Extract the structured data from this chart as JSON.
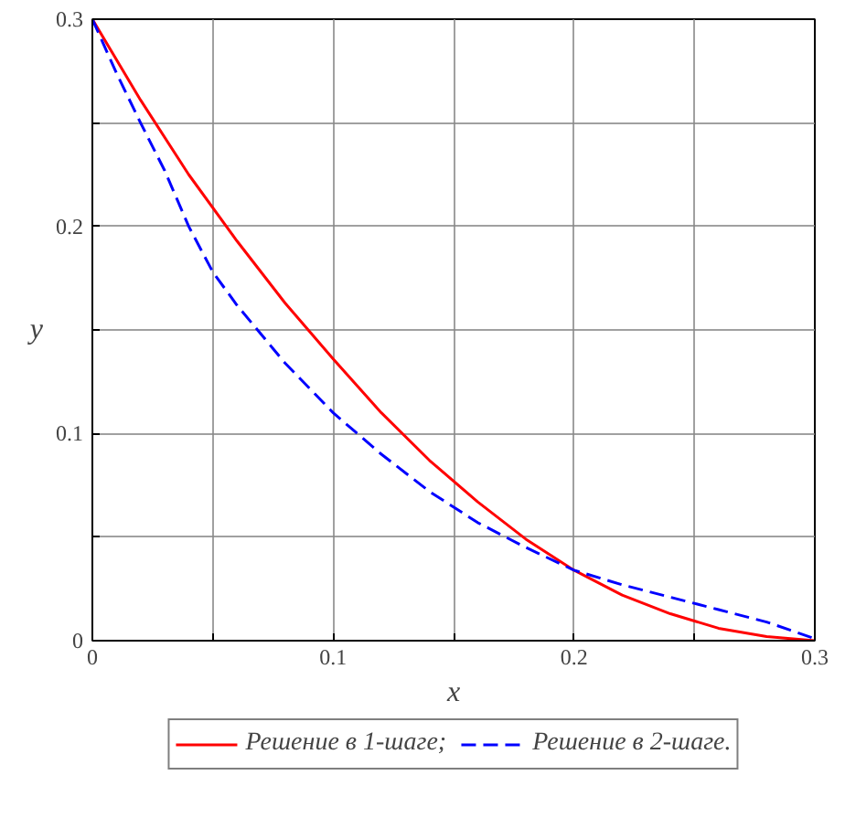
{
  "chart_data": {
    "type": "line",
    "xlabel": "x",
    "ylabel": "y",
    "xlim": [
      0,
      0.3
    ],
    "ylim": [
      0,
      0.3
    ],
    "xticks": [
      0,
      {
        "value": 0.05,
        "label": null
      },
      0.1,
      {
        "value": 0.15,
        "label": null
      },
      0.2,
      {
        "value": 0.25,
        "label": null
      },
      0.3
    ],
    "yticks": [
      0,
      {
        "value": 0.05,
        "label": null
      },
      0.1,
      {
        "value": 0.15,
        "label": null
      },
      0.2,
      {
        "value": 0.25,
        "label": null
      },
      0.3
    ],
    "grid": true,
    "legend": "bottom",
    "series": [
      {
        "name": "Решение в 1-шаге;",
        "color": "#ff0000",
        "line_style": "solid",
        "x": [
          0,
          0.02,
          0.04,
          0.06,
          0.08,
          0.1,
          0.12,
          0.14,
          0.16,
          0.18,
          0.2,
          0.22,
          0.24,
          0.26,
          0.28,
          0.3
        ],
        "values": [
          0.3,
          0.261,
          0.225,
          0.193,
          0.163,
          0.136,
          0.11,
          0.087,
          0.067,
          0.049,
          0.034,
          0.022,
          0.013,
          0.006,
          0.002,
          0.0
        ]
      },
      {
        "name": "Решение в 2-шаге.",
        "color": "#0000ff",
        "line_style": "dashed",
        "x": [
          0,
          0.01,
          0.02,
          0.03,
          0.04,
          0.05,
          0.06,
          0.08,
          0.1,
          0.12,
          0.14,
          0.16,
          0.18,
          0.2,
          0.22,
          0.24,
          0.26,
          0.28,
          0.29,
          0.3
        ],
        "values": [
          0.3,
          0.274,
          0.25,
          0.227,
          0.2,
          0.178,
          0.162,
          0.134,
          0.11,
          0.09,
          0.072,
          0.057,
          0.045,
          0.034,
          0.027,
          0.021,
          0.015,
          0.009,
          0.005,
          0.001
        ]
      }
    ]
  }
}
